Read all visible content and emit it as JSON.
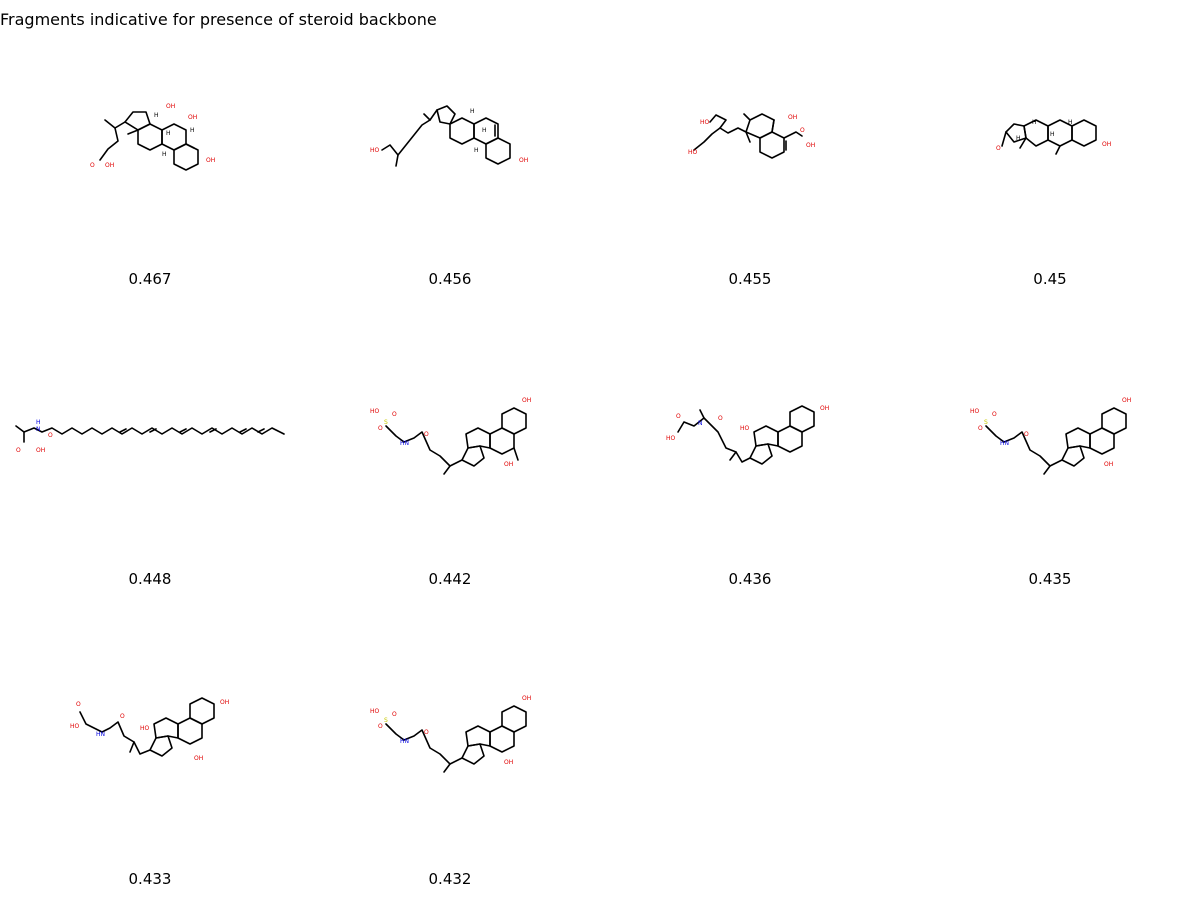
{
  "title": "Fragments indicative for presence of steroid backbone",
  "molecules": [
    {
      "score": "0.467"
    },
    {
      "score": "0.456"
    },
    {
      "score": "0.455"
    },
    {
      "score": "0.45"
    },
    {
      "score": "0.448"
    },
    {
      "score": "0.442"
    },
    {
      "score": "0.436"
    },
    {
      "score": "0.435"
    },
    {
      "score": "0.433"
    },
    {
      "score": "0.432"
    }
  ]
}
